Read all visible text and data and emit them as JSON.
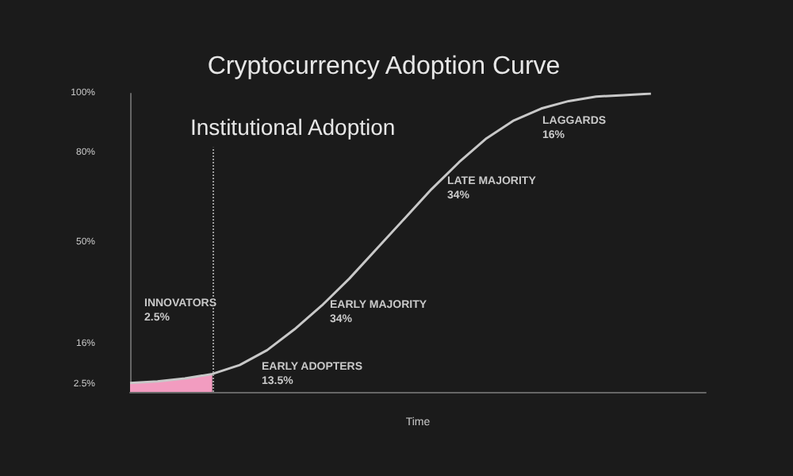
{
  "chart_data": {
    "type": "line",
    "title": "Cryptocurrency Adoption Curve",
    "xlabel": "Time",
    "categories": [
      null,
      null,
      null,
      null,
      null,
      null,
      null,
      null,
      null,
      null,
      null,
      null,
      null,
      null,
      null,
      null,
      null,
      null,
      null,
      null,
      null,
      null
    ],
    "series": [
      {
        "type": "area",
        "color": "#f29cc0",
        "values": [
          3,
          3.5,
          4.5,
          6,
          null,
          null,
          null,
          null,
          null,
          null,
          null,
          null,
          null,
          null,
          null,
          null,
          null,
          null,
          null,
          null,
          null,
          null
        ]
      },
      {
        "color": "#c8c8c8",
        "values": [
          3,
          3.5,
          4.5,
          6,
          9,
          14,
          21,
          29,
          38,
          48,
          58,
          68,
          77,
          85,
          91,
          95,
          97.5,
          99,
          99.5,
          100,
          null,
          null
        ]
      }
    ],
    "ylim": [
      0,
      100
    ],
    "yticks": [
      {
        "value": 2.5,
        "label": "2.5%"
      },
      {
        "value": 16,
        "label": "16%"
      },
      {
        "value": 50,
        "label": "50%"
      },
      {
        "value": 80,
        "label": "80%"
      },
      {
        "value": 100,
        "label": "100%"
      }
    ],
    "annotations": [
      "Institutional Adoption",
      "INNOVATORS\n2.5%",
      "EARLY ADOPTERS\n13.5%",
      "EARLY MAJORITY\n34%",
      "LATE MAJORITY\n34%",
      "LAGGARDS\n16%"
    ],
    "tick_labels": "y",
    "grid": false,
    "marker": "none"
  }
}
